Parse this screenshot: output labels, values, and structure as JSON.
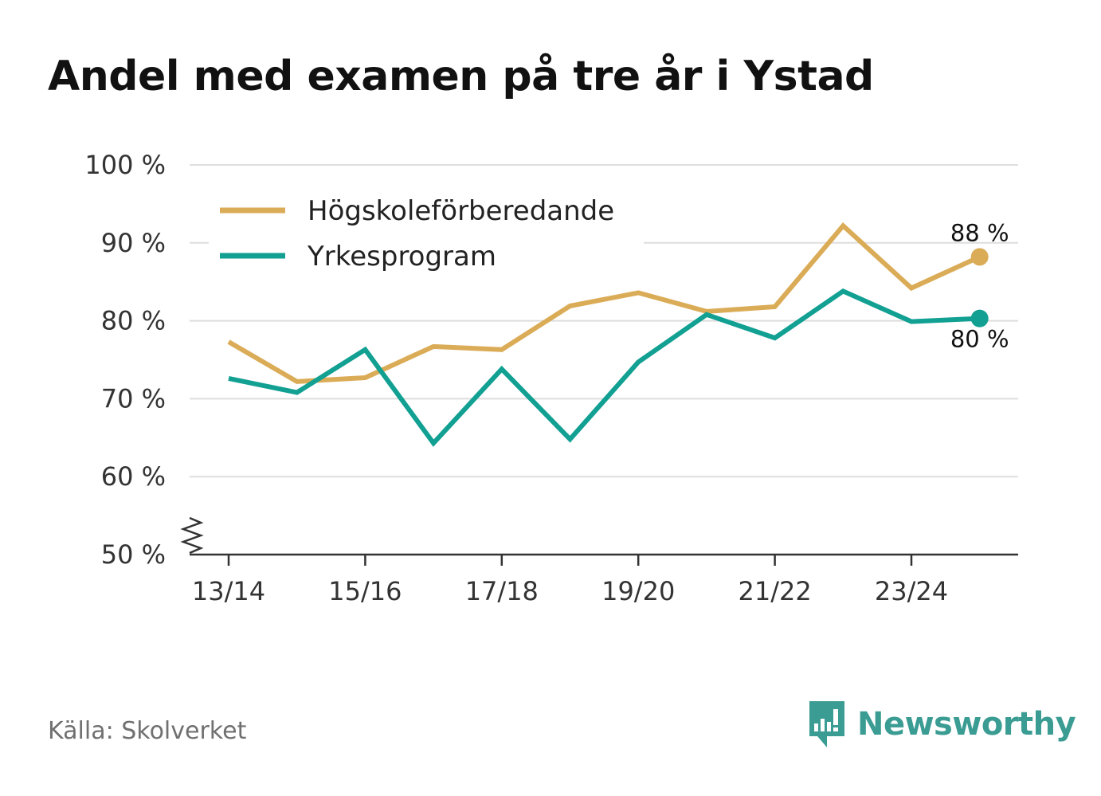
{
  "chart_data": {
    "type": "line",
    "title": "Andel med examen på tre år i Ystad",
    "categories": [
      "13/14",
      "14/15",
      "15/16",
      "16/17",
      "17/18",
      "18/19",
      "19/20",
      "20/21",
      "21/22",
      "22/23",
      "23/24",
      "24/25"
    ],
    "x_tick_labels": [
      "13/14",
      "15/16",
      "17/18",
      "19/20",
      "21/22",
      "23/24"
    ],
    "y_ticks": [
      50,
      60,
      70,
      80,
      90,
      100
    ],
    "y_tick_suffix": " %",
    "ylim": [
      50,
      100
    ],
    "y_axis_break": true,
    "xlabel": "",
    "ylabel": "",
    "legend_position": "top-left",
    "series": [
      {
        "name": "Högskoleförberedande",
        "color": "#dbac57",
        "values": [
          77.3,
          72.2,
          72.7,
          76.7,
          76.3,
          81.9,
          83.6,
          81.2,
          81.8,
          92.2,
          84.2,
          88.2
        ],
        "end_label": "88 %"
      },
      {
        "name": "Yrkesprogram",
        "color": "#12a093",
        "values": [
          72.6,
          70.8,
          76.3,
          64.3,
          73.8,
          64.8,
          74.7,
          80.8,
          77.8,
          83.8,
          79.9,
          80.3
        ],
        "end_label": "80 %"
      }
    ]
  },
  "footer": {
    "source": "Källa: Skolverket"
  },
  "brand": {
    "name": "Newsworthy",
    "color": "#3a9c93"
  }
}
